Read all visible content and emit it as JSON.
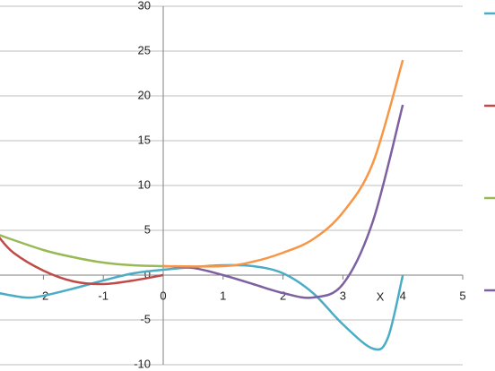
{
  "chart_data": {
    "type": "line",
    "x_label": "X",
    "xlim": [
      -3,
      5
    ],
    "xticks": [
      -2,
      -1,
      0,
      1,
      2,
      3,
      4,
      5
    ],
    "ylim": [
      -10,
      30
    ],
    "yticks": [
      -10,
      -5,
      0,
      5,
      10,
      15,
      20,
      25,
      30
    ],
    "grid": true,
    "series": [
      {
        "color": "#4bacc6",
        "x": [
          -2.75,
          -2.3,
          -2,
          -1.5,
          -1,
          -0.5,
          0,
          0.5,
          1,
          1.5,
          2,
          2.5,
          3,
          3.5,
          3.75,
          4
        ],
        "values": [
          -2,
          -2.5,
          -2.3,
          -1.5,
          -0.6,
          0.2,
          0.6,
          0.9,
          1.1,
          1,
          0.2,
          -2,
          -5.5,
          -8.2,
          -7,
          0
        ]
      },
      {
        "color": "#be4b48",
        "x": [
          -2.75,
          -2.5,
          -2,
          -1.5,
          -1,
          -0.5,
          0
        ],
        "values": [
          4.3,
          2.5,
          0.5,
          -0.7,
          -1,
          -0.6,
          0
        ]
      },
      {
        "color": "#98b954",
        "x": [
          -2.75,
          -2,
          -1.5,
          -1,
          -0.5,
          0
        ],
        "values": [
          4.5,
          2.8,
          2,
          1.4,
          1.1,
          1
        ]
      },
      {
        "color": "#7d60a0",
        "x": [
          0,
          0.5,
          1,
          1.5,
          2,
          2.5,
          3,
          3.5,
          4
        ],
        "values": [
          1,
          0.8,
          0,
          -1,
          -2,
          -2.5,
          -1,
          6,
          19
        ]
      },
      {
        "color": "#f79646",
        "x": [
          0,
          1,
          1.5,
          2,
          2.5,
          3,
          3.5,
          4
        ],
        "values": [
          1,
          1,
          1.5,
          2.5,
          4,
          7,
          12.5,
          24
        ]
      }
    ]
  }
}
